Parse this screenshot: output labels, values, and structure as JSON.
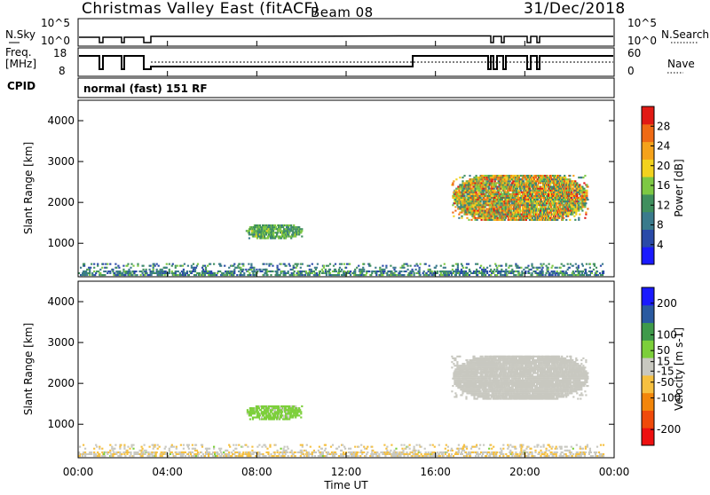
{
  "header": {
    "title": "Christmas Valley East (fitACF)",
    "beam": "Beam 08",
    "date": "31/Dec/2018"
  },
  "status_panels": {
    "nsky": {
      "label": "N.Sky",
      "ticks": [
        "10^5",
        "10^0"
      ],
      "right_ticks": [
        "10^5",
        "10^0"
      ],
      "right_label": "N.Search"
    },
    "freq": {
      "label_line1": "Freq.",
      "label_line2": "[MHz]",
      "ticks": [
        "18",
        "8"
      ],
      "right_ticks": [
        "60",
        "0"
      ],
      "right_label": "Nave"
    },
    "cpid": {
      "label": "CPID",
      "value": "normal (fast) 151 RF"
    }
  },
  "x_axis": {
    "label": "Time UT",
    "ticks": [
      "00:00",
      "04:00",
      "08:00",
      "12:00",
      "16:00",
      "20:00",
      "00:00"
    ],
    "tick_hours": [
      0,
      4,
      8,
      12,
      16,
      20,
      24
    ],
    "range": [
      0,
      24
    ]
  },
  "colors": {
    "power": [
      "#1a1aff",
      "#2a4aa8",
      "#3a7a8c",
      "#3f8f5e",
      "#7dc843",
      "#f2d21e",
      "#f5a21a",
      "#ef6a14",
      "#e11a14"
    ],
    "velocity": [
      "#ee1010",
      "#f04a0a",
      "#f2850a",
      "#f6c040",
      "#c8c8c0",
      "#7ccf3a",
      "#3f9a4a",
      "#2a5aa0",
      "#1a1aff"
    ]
  },
  "chart_data": [
    {
      "type": "heatmap",
      "name": "power",
      "ylabel": "Slant Range [km]",
      "ylim": [
        180,
        4500
      ],
      "yticks": [
        "4000",
        "3000",
        "2000",
        "1000"
      ],
      "ytick_values": [
        4000,
        3000,
        2000,
        1000
      ],
      "colorbar": {
        "label": "Power [dB]",
        "ticks": [
          "28",
          "24",
          "20",
          "16",
          "12",
          "8",
          "4"
        ],
        "tick_values": [
          28,
          24,
          20,
          16,
          12,
          8,
          4
        ],
        "range": [
          0,
          32
        ]
      },
      "regions": [
        {
          "hours": [
            0,
            23.5
          ],
          "range_km": [
            200,
            500
          ],
          "value_range": [
            4,
            16
          ],
          "density": 0.45
        },
        {
          "hours": [
            7.5,
            10.0
          ],
          "range_km": [
            1100,
            1450
          ],
          "value_range": [
            10,
            18
          ],
          "density": 0.7
        },
        {
          "hours": [
            16.7,
            22.8
          ],
          "range_km": [
            1550,
            2650
          ],
          "value_range": [
            8,
            30
          ],
          "density": 0.8
        }
      ]
    },
    {
      "type": "heatmap",
      "name": "velocity",
      "ylabel": "Slant Range [km]",
      "ylim": [
        180,
        4500
      ],
      "yticks": [
        "4000",
        "3000",
        "2000",
        "1000"
      ],
      "ytick_values": [
        4000,
        3000,
        2000,
        1000
      ],
      "colorbar": {
        "label": "Velocity [m s-1]",
        "ticks": [
          "200",
          "100",
          "50",
          "15",
          "-15",
          "-50",
          "-100",
          "-200"
        ],
        "tick_values": [
          200,
          100,
          50,
          15,
          -15,
          -50,
          -100,
          -200
        ],
        "range": [
          -250,
          250
        ]
      },
      "regions": [
        {
          "hours": [
            0,
            23.5
          ],
          "range_km": [
            200,
            500
          ],
          "value_range": [
            -60,
            30
          ],
          "density": 0.4
        },
        {
          "hours": [
            7.5,
            10.0
          ],
          "range_km": [
            1100,
            1450
          ],
          "value_range": [
            20,
            80
          ],
          "density": 0.7
        },
        {
          "hours": [
            16.7,
            22.8
          ],
          "range_km": [
            1600,
            2650
          ],
          "value_range": [
            -12,
            12
          ],
          "density": 0.85
        }
      ]
    }
  ]
}
